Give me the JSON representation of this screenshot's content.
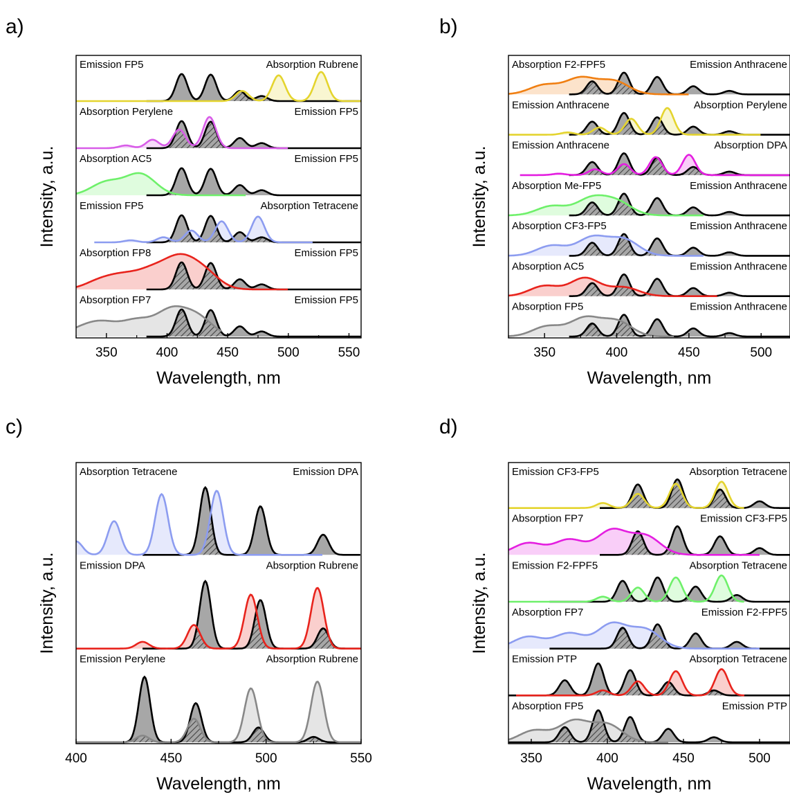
{
  "chart_data": [
    {
      "panel": "a)",
      "type": "area",
      "xlabel": "Wavelength, nm",
      "ylabel": "Intensity, a.u.",
      "xlim": [
        325,
        560
      ],
      "xticks": [
        350,
        400,
        450,
        500,
        550
      ],
      "rows": [
        {
          "left_label": "Emission FP5",
          "right_label": "Absorption Rubrene",
          "emission": {
            "label": "FP5",
            "x0": 383,
            "x1": 560
          },
          "absorption": {
            "label": "Rubrene",
            "color": "#e4d42e",
            "x0": 325,
            "x1": 560,
            "peaks": [
              [
                492,
                0.76
              ],
              [
                527,
                0.86
              ],
              [
                462,
                0.3
              ]
            ]
          }
        },
        {
          "left_label": "Absorption Perylene",
          "right_label": "Emission FP5",
          "emission": {
            "label": "FP5",
            "x0": 383,
            "x1": 560
          },
          "absorption": {
            "label": "Perylene",
            "color": "#d85ce8",
            "x0": 325,
            "x1": 500,
            "peaks": [
              [
                435,
                0.92
              ],
              [
                410,
                0.55
              ],
              [
                388,
                0.25
              ],
              [
                366,
                0.08
              ]
            ]
          }
        },
        {
          "left_label": "Absorption AC5",
          "right_label": "Emission FP5",
          "emission": {
            "label": "FP5",
            "x0": 383,
            "x1": 560
          },
          "absorption": {
            "label": "AC5",
            "color": "#6ef06a",
            "x0": 325,
            "x1": 465,
            "peaks": [
              [
                378,
                0.62
              ],
              [
                350,
                0.38
              ]
            ]
          }
        },
        {
          "left_label": "Emission FP5",
          "right_label": "Absorption Tetracene",
          "emission": {
            "label": "FP5",
            "x0": 383,
            "x1": 560
          },
          "absorption": {
            "label": "Tetracene",
            "color": "#8c9cf0",
            "x0": 340,
            "x1": 520,
            "peaks": [
              [
                475,
                0.76
              ],
              [
                445,
                0.62
              ],
              [
                420,
                0.35
              ],
              [
                397,
                0.15
              ],
              [
                370,
                0.06
              ]
            ]
          }
        },
        {
          "left_label": "Absorption FP8",
          "right_label": "Emission FP5",
          "emission": {
            "label": "FP5",
            "x0": 383,
            "x1": 560
          },
          "absorption": {
            "label": "FP8",
            "color": "#e8231c",
            "x0": 325,
            "x1": 500,
            "peaks": [
              [
                410,
                0.8
              ],
              [
                388,
                0.5
              ],
              [
                430,
                0.5
              ],
              [
                345,
                0.25
              ],
              [
                365,
                0.35
              ]
            ]
          }
        },
        {
          "left_label": "Absorption FP7",
          "right_label": "Emission FP5",
          "emission": {
            "label": "FP5",
            "x0": 383,
            "x1": 560
          },
          "absorption": {
            "label": "FP7",
            "color": "#888888",
            "x0": 325,
            "x1": 445,
            "peaks": [
              [
                403,
                0.72
              ],
              [
                425,
                0.55
              ],
              [
                348,
                0.35
              ],
              [
                330,
                0.22
              ],
              [
                375,
                0.45
              ]
            ]
          }
        }
      ]
    },
    {
      "panel": "b)",
      "type": "area",
      "xlabel": "Wavelength, nm",
      "ylabel": "Intensity, a.u.",
      "xlim": [
        325,
        520
      ],
      "xticks": [
        350,
        400,
        450,
        500
      ],
      "rows": [
        {
          "left_label": "Absorption F2-FPF5",
          "right_label": "Emission Anthracene",
          "emission": {
            "label": "Anthracene",
            "x0": 367,
            "x1": 520
          },
          "absorption": {
            "label": "F2-FPF5",
            "color": "#f07f12",
            "x0": 325,
            "x1": 450,
            "peaks": [
              [
                375,
                0.55
              ],
              [
                398,
                0.45
              ],
              [
                350,
                0.32
              ]
            ]
          }
        },
        {
          "left_label": "Emission Anthracene",
          "right_label": "Absorption Perylene",
          "emission": {
            "label": "Anthracene",
            "x0": 367,
            "x1": 520
          },
          "absorption": {
            "label": "Perylene",
            "color": "#e4d42e",
            "x0": 325,
            "x1": 500,
            "peaks": [
              [
                435,
                0.92
              ],
              [
                410,
                0.55
              ],
              [
                388,
                0.25
              ],
              [
                366,
                0.08
              ]
            ]
          }
        },
        {
          "left_label": "Emission Anthracene",
          "right_label": "Absorption DPA",
          "emission": {
            "label": "Anthracene",
            "x0": 367,
            "x1": 520
          },
          "absorption": {
            "label": "DPA",
            "color": "#e41ee0",
            "x0": 333,
            "x1": 520,
            "peaks": [
              [
                450,
                0.7
              ],
              [
                427,
                0.62
              ],
              [
                405,
                0.38
              ],
              [
                385,
                0.2
              ],
              [
                360,
                0.05
              ]
            ]
          }
        },
        {
          "left_label": "Absorption Me-FP5",
          "right_label": "Emission Anthracene",
          "emission": {
            "label": "Anthracene",
            "x0": 367,
            "x1": 520
          },
          "absorption": {
            "label": "Me-FP5",
            "color": "#6ef06a",
            "x0": 325,
            "x1": 460,
            "peaks": [
              [
                382,
                0.55
              ],
              [
                400,
                0.45
              ],
              [
                355,
                0.32
              ]
            ]
          }
        },
        {
          "left_label": "Absorption CF3-FP5",
          "right_label": "Emission Anthracene",
          "emission": {
            "label": "Anthracene",
            "x0": 367,
            "x1": 520
          },
          "absorption": {
            "label": "CF3-FP5",
            "color": "#8c9cf0",
            "x0": 325,
            "x1": 460,
            "peaks": [
              [
                383,
                0.62
              ],
              [
                405,
                0.55
              ],
              [
                355,
                0.35
              ]
            ]
          }
        },
        {
          "left_label": "Absorption AC5",
          "right_label": "Emission Anthracene",
          "emission": {
            "label": "Anthracene",
            "x0": 367,
            "x1": 520
          },
          "absorption": {
            "label": "AC5",
            "color": "#e8231c",
            "x0": 325,
            "x1": 470,
            "peaks": [
              [
                378,
                0.62
              ],
              [
                350,
                0.35
              ],
              [
                405,
                0.3
              ]
            ]
          }
        },
        {
          "left_label": "Absorption FP5",
          "right_label": "Emission Anthracene",
          "emission": {
            "label": "Anthracene",
            "x0": 367,
            "x1": 520
          },
          "absorption": {
            "label": "FP5",
            "color": "#888888",
            "x0": 325,
            "x1": 440,
            "peaks": [
              [
                378,
                0.62
              ],
              [
                400,
                0.52
              ],
              [
                352,
                0.35
              ]
            ]
          }
        }
      ]
    },
    {
      "panel": "c)",
      "type": "area",
      "xlabel": "Wavelength, nm",
      "ylabel": "Intensity, a.u.",
      "xlim": [
        400,
        550
      ],
      "xticks": [
        400,
        450,
        500,
        550
      ],
      "rows": [
        {
          "left_label": "Absorption Tetracene",
          "right_label": "Emission DPA",
          "emission": {
            "label": "DPA",
            "x0": 435,
            "x1": 550
          },
          "absorption": {
            "label": "Tetracene",
            "color": "#8c9cf0",
            "x0": 400,
            "x1": 530,
            "peaks": [
              [
                474,
                0.95
              ],
              [
                445,
                0.9
              ],
              [
                420,
                0.5
              ],
              [
                400,
                0.2
              ]
            ]
          }
        },
        {
          "left_label": "Emission DPA",
          "right_label": "Absorption Rubrene",
          "emission": {
            "label": "DPA",
            "x0": 435,
            "x1": 550
          },
          "absorption": {
            "label": "Rubrene",
            "color": "#e8231c",
            "x0": 400,
            "x1": 550,
            "peaks": [
              [
                527,
                0.9
              ],
              [
                492,
                0.8
              ],
              [
                462,
                0.35
              ],
              [
                435,
                0.1
              ]
            ]
          }
        },
        {
          "left_label": "Emission Perylene",
          "right_label": "Absorption Rubrene",
          "emission": {
            "label": "Perylene",
            "x0": 400,
            "x1": 550
          },
          "absorption": {
            "label": "Rubrene",
            "color": "#888888",
            "x0": 400,
            "x1": 550,
            "peaks": [
              [
                527,
                0.9
              ],
              [
                492,
                0.8
              ],
              [
                462,
                0.35
              ],
              [
                435,
                0.1
              ]
            ]
          }
        }
      ]
    },
    {
      "panel": "d)",
      "type": "area",
      "xlabel": "Wavelength, nm",
      "ylabel": "Intensity, a.u.",
      "xlim": [
        335,
        520
      ],
      "xticks": [
        350,
        400,
        450,
        500
      ],
      "rows": [
        {
          "left_label": "Emission CF3-FP5",
          "right_label": "Absorption Tetracene",
          "emission": {
            "label": "CF3-FP5",
            "x0": 395,
            "x1": 520
          },
          "absorption": {
            "label": "Tetracene",
            "color": "#e4d42e",
            "x0": 335,
            "x1": 490,
            "peaks": [
              [
                475,
                0.78
              ],
              [
                445,
                0.72
              ],
              [
                420,
                0.42
              ],
              [
                397,
                0.15
              ]
            ]
          }
        },
        {
          "left_label": "Absorption FP7",
          "right_label": "Emission CF3-FP5",
          "emission": {
            "label": "CF3-FP5",
            "x0": 395,
            "x1": 520
          },
          "absorption": {
            "label": "FP7",
            "color": "#e41ee0",
            "x0": 335,
            "x1": 500,
            "peaks": [
              [
                403,
                0.72
              ],
              [
                425,
                0.55
              ],
              [
                348,
                0.35
              ],
              [
                375,
                0.45
              ]
            ]
          }
        },
        {
          "left_label": "Emission F2-FPF5",
          "right_label": "Absorption Tetracene",
          "emission": {
            "label": "F2-FPF5",
            "x0": 362,
            "x1": 520
          },
          "absorption": {
            "label": "Tetracene",
            "color": "#6ef06a",
            "x0": 335,
            "x1": 490,
            "peaks": [
              [
                475,
                0.78
              ],
              [
                445,
                0.72
              ],
              [
                420,
                0.42
              ],
              [
                397,
                0.15
              ]
            ]
          }
        },
        {
          "left_label": "Absorption FP7",
          "right_label": "Emission F2-FPF5",
          "emission": {
            "label": "F2-FPF5",
            "x0": 362,
            "x1": 520
          },
          "absorption": {
            "label": "FP7",
            "color": "#8c9cf0",
            "x0": 335,
            "x1": 500,
            "peaks": [
              [
                403,
                0.72
              ],
              [
                425,
                0.55
              ],
              [
                348,
                0.35
              ],
              [
                375,
                0.45
              ]
            ]
          }
        },
        {
          "left_label": "Emission PTP",
          "right_label": "Absorption Tetracene",
          "emission": {
            "label": "PTP",
            "x0": 335,
            "x1": 520
          },
          "absorption": {
            "label": "Tetracene",
            "color": "#e8231c",
            "x0": 340,
            "x1": 490,
            "peaks": [
              [
                475,
                0.78
              ],
              [
                445,
                0.72
              ],
              [
                420,
                0.42
              ],
              [
                397,
                0.15
              ]
            ]
          }
        },
        {
          "left_label": "Absorption FP5",
          "right_label": "Emission PTP",
          "emission": {
            "label": "PTP",
            "x0": 335,
            "x1": 520
          },
          "absorption": {
            "label": "FP5",
            "color": "#888888",
            "x0": 335,
            "x1": 440,
            "peaks": [
              [
                378,
                0.62
              ],
              [
                400,
                0.52
              ],
              [
                352,
                0.35
              ]
            ]
          }
        }
      ]
    }
  ],
  "emission_profiles": {
    "FP5": [
      [
        412,
        0.8
      ],
      [
        436,
        0.78
      ],
      [
        460,
        0.3
      ],
      [
        478,
        0.15
      ]
    ],
    "Anthracene": [
      [
        383,
        0.45
      ],
      [
        405,
        0.75
      ],
      [
        428,
        0.6
      ],
      [
        453,
        0.28
      ],
      [
        478,
        0.12
      ]
    ],
    "DPA": [
      [
        468,
        1.0
      ],
      [
        497,
        0.72
      ],
      [
        530,
        0.3
      ]
    ],
    "Perylene": [
      [
        436,
        0.97
      ],
      [
        463,
        0.58
      ],
      [
        496,
        0.22
      ],
      [
        525,
        0.08
      ]
    ],
    "CF3-FP5": [
      [
        420,
        0.7
      ],
      [
        446,
        0.85
      ],
      [
        474,
        0.55
      ],
      [
        500,
        0.2
      ]
    ],
    "F2-FPF5": [
      [
        410,
        0.62
      ],
      [
        433,
        0.72
      ],
      [
        458,
        0.45
      ],
      [
        485,
        0.2
      ]
    ],
    "PTP": [
      [
        372,
        0.45
      ],
      [
        394,
        0.95
      ],
      [
        415,
        0.75
      ],
      [
        440,
        0.4
      ],
      [
        470,
        0.15
      ]
    ]
  },
  "colors": {
    "emission_fill": "#a7a7a7",
    "emission_line": "#000000",
    "hatch": "#444444"
  }
}
